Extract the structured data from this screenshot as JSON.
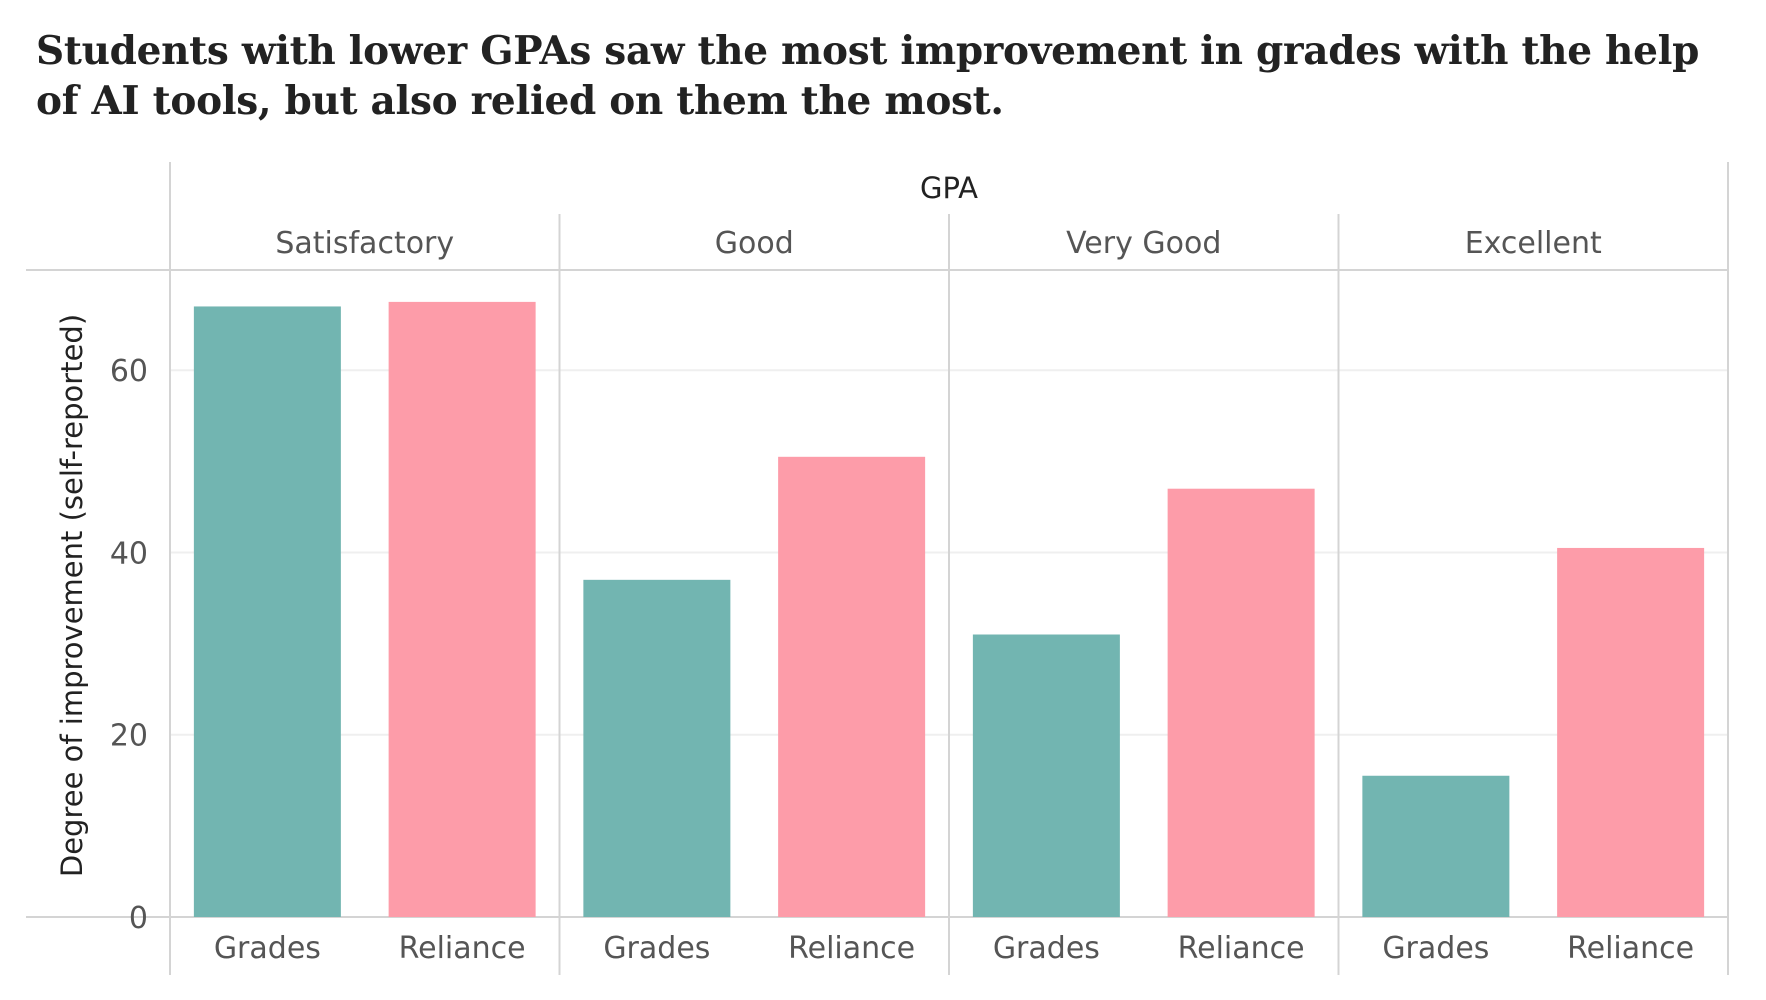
{
  "chart_data": {
    "type": "bar",
    "title": "Students with lower GPAs saw the most improvement in grades with the help of AI tools, but also relied on them the most.",
    "facet_title": "GPA",
    "facets": [
      "Satisfactory",
      "Good",
      "Very Good",
      "Excellent"
    ],
    "categories": [
      "Grades",
      "Reliance"
    ],
    "series": [
      {
        "name": "Satisfactory",
        "values": [
          67,
          67.5
        ]
      },
      {
        "name": "Good",
        "values": [
          37,
          50.5
        ]
      },
      {
        "name": "Very Good",
        "values": [
          31,
          47
        ]
      },
      {
        "name": "Excellent",
        "values": [
          15.5,
          40.5
        ]
      }
    ],
    "ylabel": "Degree of improvement (self-reported)",
    "xlabel": "",
    "ylim": [
      0,
      71
    ],
    "yticks": [
      0,
      20,
      40,
      60
    ],
    "colors": {
      "Grades": "#72b5b1",
      "Reliance": "#fd9ca9"
    }
  }
}
